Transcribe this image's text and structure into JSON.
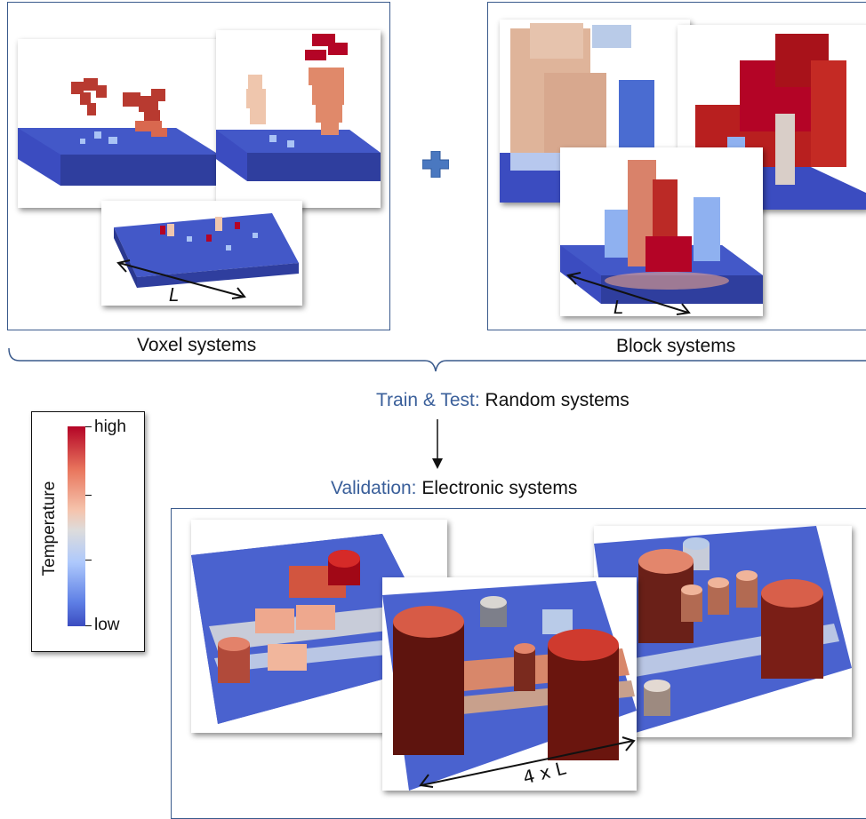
{
  "top": {
    "voxel": {
      "caption": "Voxel systems",
      "length_label": "L"
    },
    "block": {
      "caption": "Block systems",
      "length_label": "L"
    },
    "plus_icon": "plus-icon"
  },
  "flow": {
    "train": {
      "prefix": "Train & Test:",
      "text": " Random systems"
    },
    "validation": {
      "prefix": "Validation:",
      "text": " Electronic systems"
    }
  },
  "legend": {
    "title": "Temperature",
    "high": "high",
    "low": "low"
  },
  "bottom": {
    "length_label": "4 x L"
  },
  "colors": {
    "accent": "#3a5f9a",
    "frame": "#3a5a8c",
    "hot": "#b40426",
    "cold": "#3b4cc0",
    "mid": "#dddcdc"
  }
}
